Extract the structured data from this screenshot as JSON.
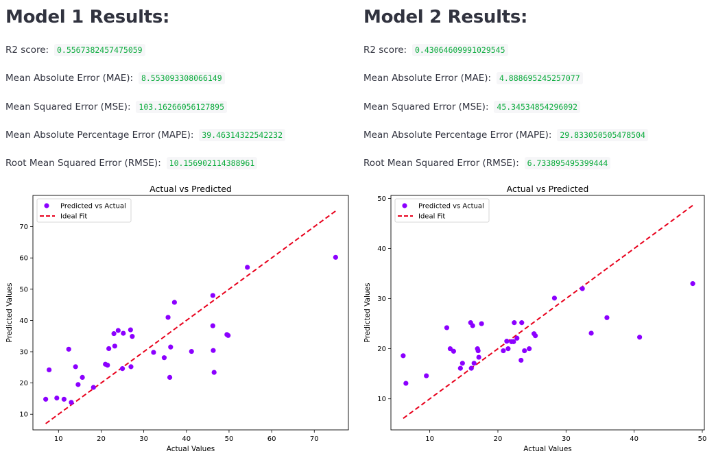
{
  "models": [
    {
      "title": "Model 1 Results:",
      "metrics": [
        {
          "label": "R2 score:",
          "value": "0.5567382457475059"
        },
        {
          "label": "Mean Absolute Error (MAE):",
          "value": "8.553093308066149"
        },
        {
          "label": "Mean Squared Error (MSE):",
          "value": "103.16266056127895"
        },
        {
          "label": "Mean Absolute Percentage Error (MAPE):",
          "value": "39.46314322542232"
        },
        {
          "label": "Root Mean Squared Error (RMSE):",
          "value": "10.156902114388961"
        }
      ]
    },
    {
      "title": "Model 2 Results:",
      "metrics": [
        {
          "label": "R2 score:",
          "value": "0.43064609991029545"
        },
        {
          "label": "Mean Absolute Error (MAE):",
          "value": "4.888695245257077"
        },
        {
          "label": "Mean Squared Error (MSE):",
          "value": "45.34534854296092"
        },
        {
          "label": "Mean Absolute Percentage Error (MAPE):",
          "value": "29.833050505478504"
        },
        {
          "label": "Root Mean Squared Error (RMSE):",
          "value": "6.733895495399444"
        }
      ]
    }
  ],
  "colors": {
    "points": "#8b00ff",
    "ideal": "#e8001c",
    "text": "#31333f",
    "metric_value": "#09ab3b"
  },
  "chart_data": [
    {
      "type": "scatter",
      "title": "Actual vs Predicted",
      "xlabel": "Actual Values",
      "ylabel": "Predicted Values",
      "xlim": [
        4,
        78
      ],
      "ylim": [
        5,
        80
      ],
      "xticks": [
        10,
        20,
        30,
        40,
        50,
        60,
        70
      ],
      "yticks": [
        10,
        20,
        30,
        40,
        50,
        60,
        70
      ],
      "legend_position": "top-left",
      "series": [
        {
          "name": "Predicted vs Actual",
          "kind": "points",
          "x": [
            7,
            7.8,
            9.6,
            11.3,
            12.4,
            13,
            14,
            14.6,
            15.6,
            18.2,
            21,
            21.5,
            21.8,
            23,
            23.2,
            24,
            25,
            25.2,
            26.9,
            27,
            27.3,
            32.3,
            34.8,
            35.7,
            36.1,
            36.3,
            37.2,
            41.2,
            46.2,
            46.2,
            46.3,
            46.5,
            49.5,
            49.8,
            54.3,
            75
          ],
          "y": [
            14.8,
            24.2,
            15.2,
            14.8,
            30.8,
            13.8,
            25.2,
            19.5,
            21.8,
            18.6,
            26,
            25.7,
            31,
            35.8,
            31.8,
            36.8,
            24.6,
            35.9,
            37,
            25.2,
            34.9,
            29.8,
            28.1,
            41,
            21.8,
            31.5,
            45.8,
            30.1,
            48,
            38.3,
            30.4,
            23.4,
            35.5,
            35.2,
            57,
            60.2
          ]
        },
        {
          "name": "Ideal Fit",
          "kind": "line",
          "x": [
            7,
            75
          ],
          "y": [
            7,
            75
          ]
        }
      ]
    },
    {
      "type": "scatter",
      "title": "Actual vs Predicted",
      "xlabel": "Actual Values",
      "ylabel": "Predicted Values",
      "xlim": [
        4.3,
        50.3
      ],
      "ylim": [
        3.8,
        50.6
      ],
      "xticks": [
        10,
        20,
        30,
        40,
        50
      ],
      "yticks": [
        10,
        20,
        30,
        40,
        50
      ],
      "legend_position": "top-left",
      "series": [
        {
          "name": "Predicted vs Actual",
          "kind": "points",
          "x": [
            6.1,
            6.5,
            9.5,
            12.5,
            13,
            13.5,
            14.5,
            14.8,
            16,
            16.1,
            16.3,
            16.5,
            17,
            17.1,
            17.2,
            17.6,
            20.8,
            21.3,
            21.5,
            22,
            22.3,
            22.4,
            22.8,
            23.4,
            23.5,
            23.9,
            24.6,
            25.3,
            25.5,
            28.3,
            32.4,
            33.7,
            36,
            40.8,
            48.6
          ],
          "y": [
            18.6,
            13.1,
            14.6,
            24.2,
            20,
            19.5,
            16.1,
            17.1,
            25.2,
            16.1,
            24.6,
            17.1,
            20,
            19.6,
            18.3,
            25,
            19.6,
            21.5,
            20,
            21.4,
            21.4,
            25.2,
            22.1,
            17.7,
            25.2,
            19.6,
            20,
            23,
            22.6,
            30.1,
            32,
            23.1,
            26.2,
            22.3,
            33
          ]
        },
        {
          "name": "Ideal Fit",
          "kind": "line",
          "x": [
            6.1,
            48.6
          ],
          "y": [
            6.1,
            48.6
          ]
        }
      ]
    }
  ]
}
